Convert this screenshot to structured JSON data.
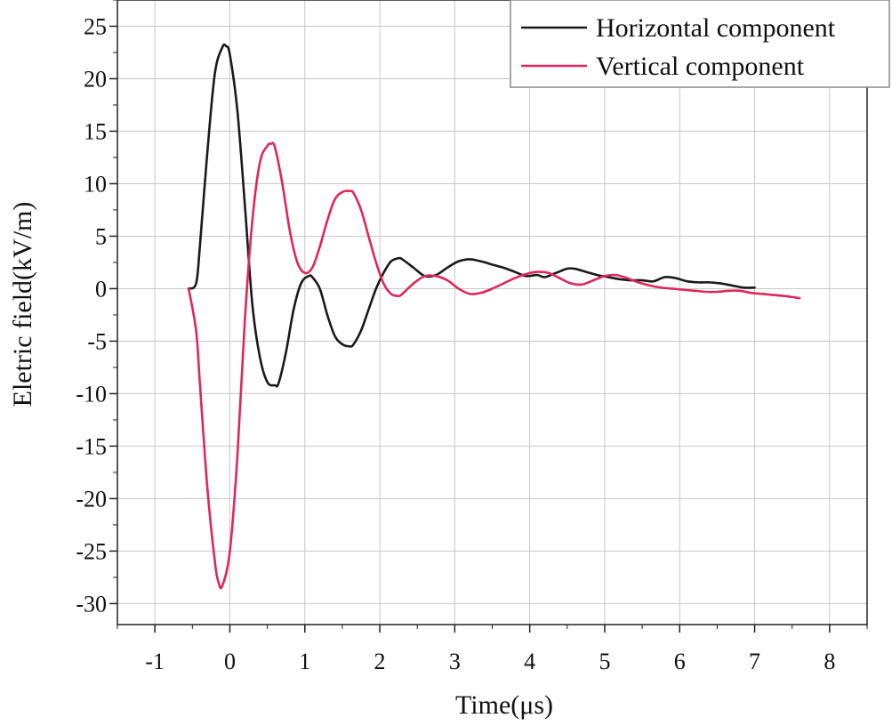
{
  "chart_data": {
    "type": "line",
    "title": "",
    "xlabel": "Time(μs)",
    "ylabel": "Eletric field(kV/m)",
    "xlim": [
      -1.5,
      8.5
    ],
    "ylim": [
      -32,
      27.5
    ],
    "x_ticks": [
      -1,
      0,
      1,
      2,
      3,
      4,
      5,
      6,
      7,
      8
    ],
    "x_tick_labels": [
      "-1",
      "0",
      "1",
      "2",
      "3",
      "4",
      "5",
      "6",
      "7",
      "8"
    ],
    "y_ticks": [
      25,
      20,
      15,
      10,
      5,
      0,
      -5,
      -10,
      -15,
      -20,
      -25,
      -30
    ],
    "y_tick_labels": [
      "25",
      "20",
      "15",
      "10",
      "5",
      "0",
      "-5",
      "-10",
      "-15",
      "-20",
      "-25",
      "-30"
    ],
    "grid": true,
    "legend_position": "top-right",
    "series": [
      {
        "name": "Horizontal component",
        "color": "#1a1a1a",
        "x": [
          -0.55,
          -0.45,
          -0.4,
          -0.3,
          -0.2,
          -0.1,
          -0.05,
          0,
          0.1,
          0.2,
          0.3,
          0.4,
          0.5,
          0.6,
          0.65,
          0.75,
          0.85,
          0.95,
          1.05,
          1.1,
          1.2,
          1.3,
          1.4,
          1.5,
          1.6,
          1.65,
          1.75,
          1.85,
          1.95,
          2.05,
          2.15,
          2.25,
          2.3,
          2.45,
          2.6,
          2.75,
          2.9,
          3.05,
          3.2,
          3.35,
          3.5,
          3.65,
          3.8,
          3.95,
          4.1,
          4.2,
          4.35,
          4.5,
          4.6,
          4.75,
          4.9,
          5.05,
          5.2,
          5.35,
          5.5,
          5.65,
          5.8,
          5.95,
          6.1,
          6.25,
          6.4,
          6.55,
          6.7,
          6.85,
          7.0
        ],
        "values": [
          0.0,
          0.5,
          4.0,
          13.0,
          20.5,
          23.0,
          23.1,
          22.3,
          17.0,
          8.0,
          -1.5,
          -6.5,
          -8.9,
          -9.2,
          -9.0,
          -6.0,
          -2.0,
          0.5,
          1.2,
          1.1,
          0.0,
          -2.5,
          -4.5,
          -5.3,
          -5.5,
          -5.3,
          -4.0,
          -2.0,
          0.0,
          1.5,
          2.6,
          2.9,
          2.8,
          2.0,
          1.2,
          1.3,
          2.0,
          2.6,
          2.8,
          2.6,
          2.3,
          2.0,
          1.6,
          1.2,
          1.3,
          1.1,
          1.5,
          1.9,
          1.9,
          1.6,
          1.3,
          1.1,
          0.9,
          0.8,
          0.8,
          0.7,
          1.1,
          1.0,
          0.7,
          0.6,
          0.6,
          0.5,
          0.3,
          0.1,
          0.1
        ]
      },
      {
        "name": "Vertical component",
        "color": "#e0265a",
        "x": [
          -0.55,
          -0.45,
          -0.4,
          -0.3,
          -0.2,
          -0.15,
          -0.1,
          0,
          0.1,
          0.2,
          0.3,
          0.4,
          0.5,
          0.55,
          0.6,
          0.7,
          0.8,
          0.9,
          1.0,
          1.1,
          1.2,
          1.3,
          1.4,
          1.5,
          1.6,
          1.65,
          1.75,
          1.85,
          1.95,
          2.05,
          2.15,
          2.25,
          2.3,
          2.45,
          2.6,
          2.75,
          2.9,
          3.05,
          3.2,
          3.35,
          3.5,
          3.65,
          3.8,
          3.95,
          4.1,
          4.25,
          4.4,
          4.55,
          4.7,
          4.85,
          5.0,
          5.15,
          5.3,
          5.45,
          5.6,
          5.75,
          5.9,
          6.05,
          6.2,
          6.35,
          6.5,
          6.65,
          6.8,
          6.95,
          7.1,
          7.25,
          7.4,
          7.6
        ],
        "values": [
          0.0,
          -4.0,
          -9.0,
          -19.0,
          -26.0,
          -28.0,
          -28.3,
          -25.0,
          -16.0,
          -3.0,
          6.5,
          12.0,
          13.6,
          13.8,
          13.5,
          10.0,
          5.5,
          2.5,
          1.5,
          2.0,
          4.0,
          6.5,
          8.5,
          9.2,
          9.3,
          9.1,
          7.5,
          5.0,
          2.5,
          0.5,
          -0.5,
          -0.7,
          -0.5,
          0.5,
          1.2,
          1.2,
          0.8,
          0.0,
          -0.5,
          -0.4,
          0.0,
          0.5,
          1.0,
          1.4,
          1.6,
          1.5,
          1.0,
          0.5,
          0.4,
          0.8,
          1.2,
          1.3,
          1.0,
          0.6,
          0.3,
          0.1,
          0.0,
          -0.1,
          -0.2,
          -0.3,
          -0.3,
          -0.2,
          -0.2,
          -0.4,
          -0.5,
          -0.6,
          -0.7,
          -0.9
        ]
      }
    ]
  }
}
